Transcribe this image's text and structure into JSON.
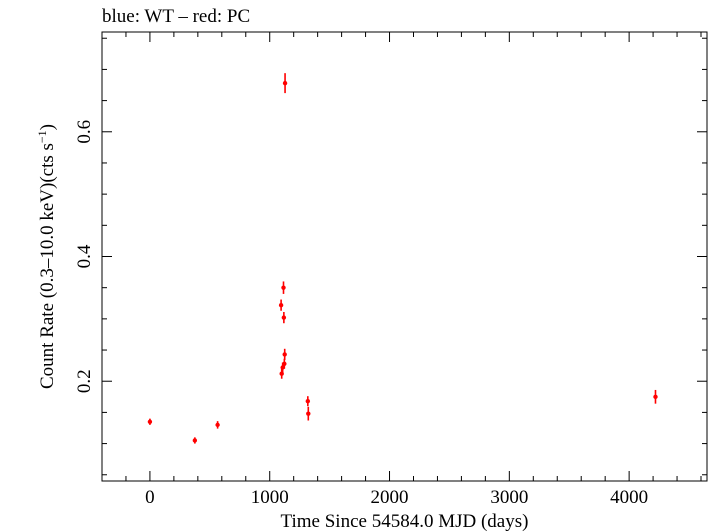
{
  "chart_data": {
    "type": "scatter",
    "title": "blue: WT – red: PC",
    "xlabel": "Time Since 54584.0 MJD (days)",
    "ylabel_main": "Count Rate (0.3–10.0 keV)(cts s",
    "ylabel_sup": "−1",
    "ylabel_close": ")",
    "xlim": [
      -400,
      4650
    ],
    "ylim": [
      0.04,
      0.76
    ],
    "x_major_ticks": [
      0,
      1000,
      2000,
      3000,
      4000
    ],
    "x_tick_labels": [
      "0",
      "1000",
      "2000",
      "3000",
      "4000"
    ],
    "x_minor_step": 200,
    "y_major_ticks": [
      0.2,
      0.4,
      0.6
    ],
    "y_tick_labels": [
      "0.2",
      "0.4",
      "0.6"
    ],
    "y_minor_step": 0.05,
    "grid": false,
    "series": [
      {
        "name": "PC",
        "color": "#ff0000",
        "points": [
          {
            "x": 0,
            "y": 0.135,
            "err": 0.005
          },
          {
            "x": 375,
            "y": 0.105,
            "err": 0.005
          },
          {
            "x": 565,
            "y": 0.13,
            "err": 0.006
          },
          {
            "x": 1095,
            "y": 0.322,
            "err": 0.009
          },
          {
            "x": 1100,
            "y": 0.212,
            "err": 0.008
          },
          {
            "x": 1108,
            "y": 0.222,
            "err": 0.008
          },
          {
            "x": 1115,
            "y": 0.35,
            "err": 0.01
          },
          {
            "x": 1118,
            "y": 0.302,
            "err": 0.009
          },
          {
            "x": 1122,
            "y": 0.228,
            "err": 0.008
          },
          {
            "x": 1125,
            "y": 0.243,
            "err": 0.009
          },
          {
            "x": 1128,
            "y": 0.678,
            "err": 0.016
          },
          {
            "x": 1318,
            "y": 0.168,
            "err": 0.008
          },
          {
            "x": 1322,
            "y": 0.148,
            "err": 0.011
          },
          {
            "x": 4220,
            "y": 0.175,
            "err": 0.011
          }
        ]
      }
    ]
  }
}
